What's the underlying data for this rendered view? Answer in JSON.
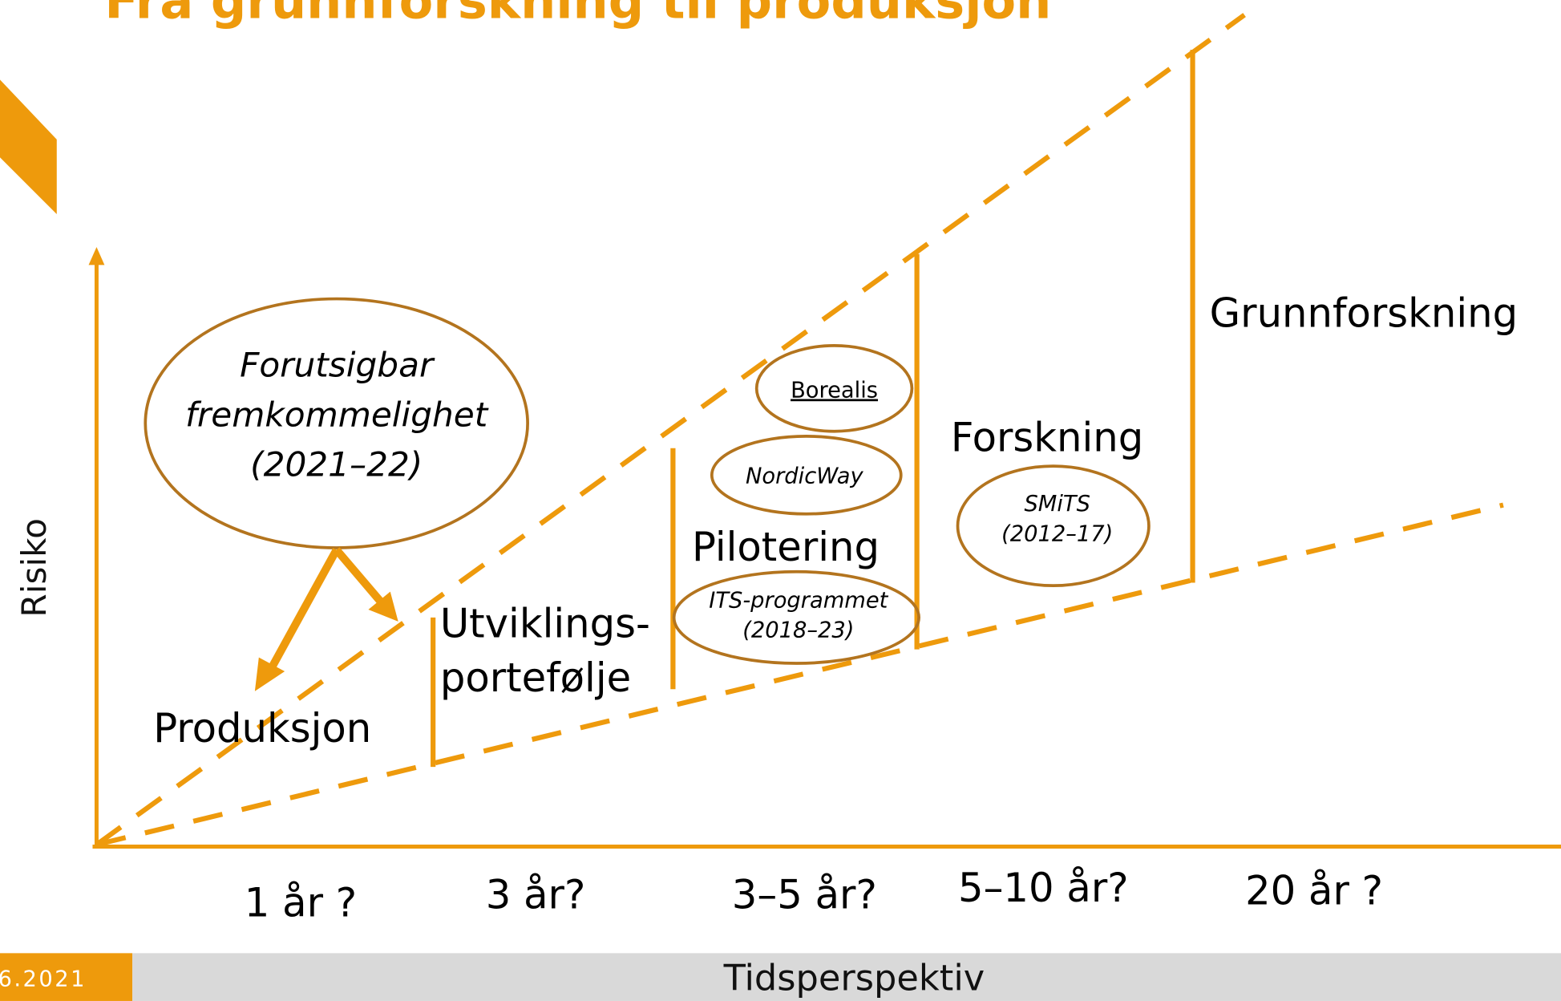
{
  "title": "Fra grunnforskning til produksjon",
  "y_axis_label": "Risiko",
  "x_axis_label": "Tidsperspektiv",
  "footer_date": "6.2021",
  "stages": [
    {
      "label": [
        "Produksjon"
      ]
    },
    {
      "label": [
        "Utviklings-",
        "portefølje"
      ]
    },
    {
      "label": [
        "Pilotering"
      ]
    },
    {
      "label": [
        "Forskning"
      ]
    },
    {
      "label": [
        "Grunnforskning"
      ]
    }
  ],
  "projects": [
    {
      "label": [
        "Forutsigbar",
        "fremkommelighet",
        "(2021–22)"
      ]
    },
    {
      "label": [
        "Borealis"
      ]
    },
    {
      "label": [
        "NordicWay"
      ]
    },
    {
      "label": [
        "ITS-programmet",
        "(2018–23)"
      ]
    },
    {
      "label": [
        "SMiTS",
        "(2012–17)"
      ]
    }
  ],
  "time_labels": [
    "1 år ?",
    "3 år?",
    "3–5 år?",
    "5–10 år?",
    "20 år ?"
  ]
}
